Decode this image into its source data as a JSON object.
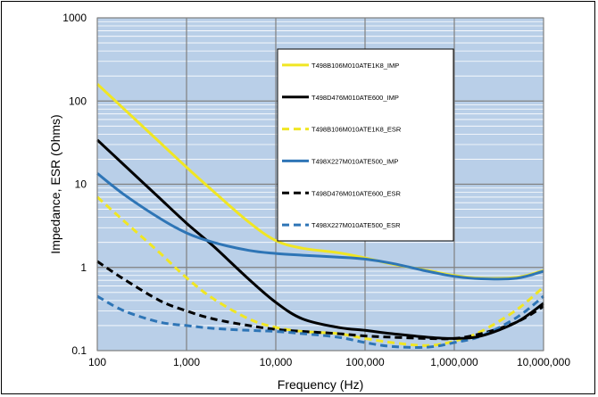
{
  "chart_data": {
    "type": "line",
    "title": "",
    "xlabel": "Frequency (Hz)",
    "ylabel": "Impedance, ESR (Ohms)",
    "x_scale": "log",
    "y_scale": "log",
    "xlim": [
      100,
      10000000
    ],
    "ylim": [
      0.1,
      1000
    ],
    "x_ticks": [
      100,
      1000,
      10000,
      100000,
      1000000,
      10000000
    ],
    "x_tick_labels": [
      "100",
      "1,000",
      "10,000",
      "100,000",
      "1,000,000",
      "10,000,000"
    ],
    "y_ticks": [
      0.1,
      1,
      10,
      100,
      1000
    ],
    "y_tick_labels": [
      "0.1",
      "1",
      "10",
      "100",
      "1000"
    ],
    "grid": true,
    "plot_background": "#b9cfe8",
    "legend_position": "top-right",
    "series": [
      {
        "name": "T498B106M010ATE1K8_IMP",
        "color": "#f0e623",
        "dash": "solid",
        "x": [
          100,
          200,
          500,
          1000,
          2000,
          5000,
          10000,
          20000,
          50000,
          100000,
          200000,
          500000,
          1000000,
          2000000,
          5000000,
          10000000
        ],
        "y": [
          160,
          80,
          32,
          16,
          8.2,
          3.5,
          2.1,
          1.7,
          1.5,
          1.3,
          1.1,
          0.92,
          0.8,
          0.74,
          0.76,
          0.92
        ]
      },
      {
        "name": "T498D476M010ATE600_IMP",
        "color": "#000000",
        "dash": "solid",
        "x": [
          100,
          200,
          500,
          1000,
          2000,
          5000,
          10000,
          20000,
          50000,
          100000,
          200000,
          500000,
          1000000,
          2000000,
          5000000,
          10000000
        ],
        "y": [
          34,
          17,
          6.8,
          3.4,
          1.8,
          0.72,
          0.38,
          0.24,
          0.19,
          0.175,
          0.16,
          0.145,
          0.14,
          0.15,
          0.22,
          0.37
        ]
      },
      {
        "name": "T498B106M010ATE1K8_ESR",
        "color": "#f0e623",
        "dash": "dashed",
        "x": [
          100,
          200,
          500,
          1000,
          2000,
          5000,
          10000,
          20000,
          50000,
          100000,
          200000,
          500000,
          1000000,
          2000000,
          5000000,
          10000000
        ],
        "y": [
          7.0,
          3.6,
          1.5,
          0.75,
          0.42,
          0.24,
          0.19,
          0.17,
          0.16,
          0.14,
          0.125,
          0.115,
          0.13,
          0.17,
          0.31,
          0.58
        ]
      },
      {
        "name": "T498X227M010ATE500_IMP",
        "color": "#2e75b6",
        "dash": "solid",
        "x": [
          100,
          200,
          500,
          1000,
          2000,
          5000,
          10000,
          20000,
          50000,
          100000,
          200000,
          500000,
          1000000,
          2000000,
          5000000,
          10000000
        ],
        "y": [
          13.5,
          7.5,
          3.9,
          2.6,
          2.0,
          1.6,
          1.47,
          1.4,
          1.33,
          1.26,
          1.12,
          0.9,
          0.78,
          0.73,
          0.74,
          0.9
        ]
      },
      {
        "name": "T498D476M010ATE600_ESR",
        "color": "#000000",
        "dash": "dashed",
        "x": [
          100,
          200,
          500,
          1000,
          2000,
          5000,
          10000,
          20000,
          50000,
          100000,
          200000,
          500000,
          1000000,
          2000000,
          5000000,
          10000000
        ],
        "y": [
          1.18,
          0.72,
          0.4,
          0.3,
          0.24,
          0.2,
          0.18,
          0.17,
          0.16,
          0.15,
          0.145,
          0.14,
          0.14,
          0.16,
          0.22,
          0.34
        ]
      },
      {
        "name": "T498X227M010ATE500_ESR",
        "color": "#2e75b6",
        "dash": "dashed",
        "x": [
          100,
          200,
          500,
          1000,
          2000,
          5000,
          10000,
          20000,
          50000,
          100000,
          200000,
          500000,
          1000000,
          2000000,
          5000000,
          10000000
        ],
        "y": [
          0.45,
          0.3,
          0.22,
          0.2,
          0.185,
          0.175,
          0.17,
          0.16,
          0.145,
          0.125,
          0.112,
          0.11,
          0.125,
          0.15,
          0.25,
          0.45
        ]
      }
    ]
  }
}
